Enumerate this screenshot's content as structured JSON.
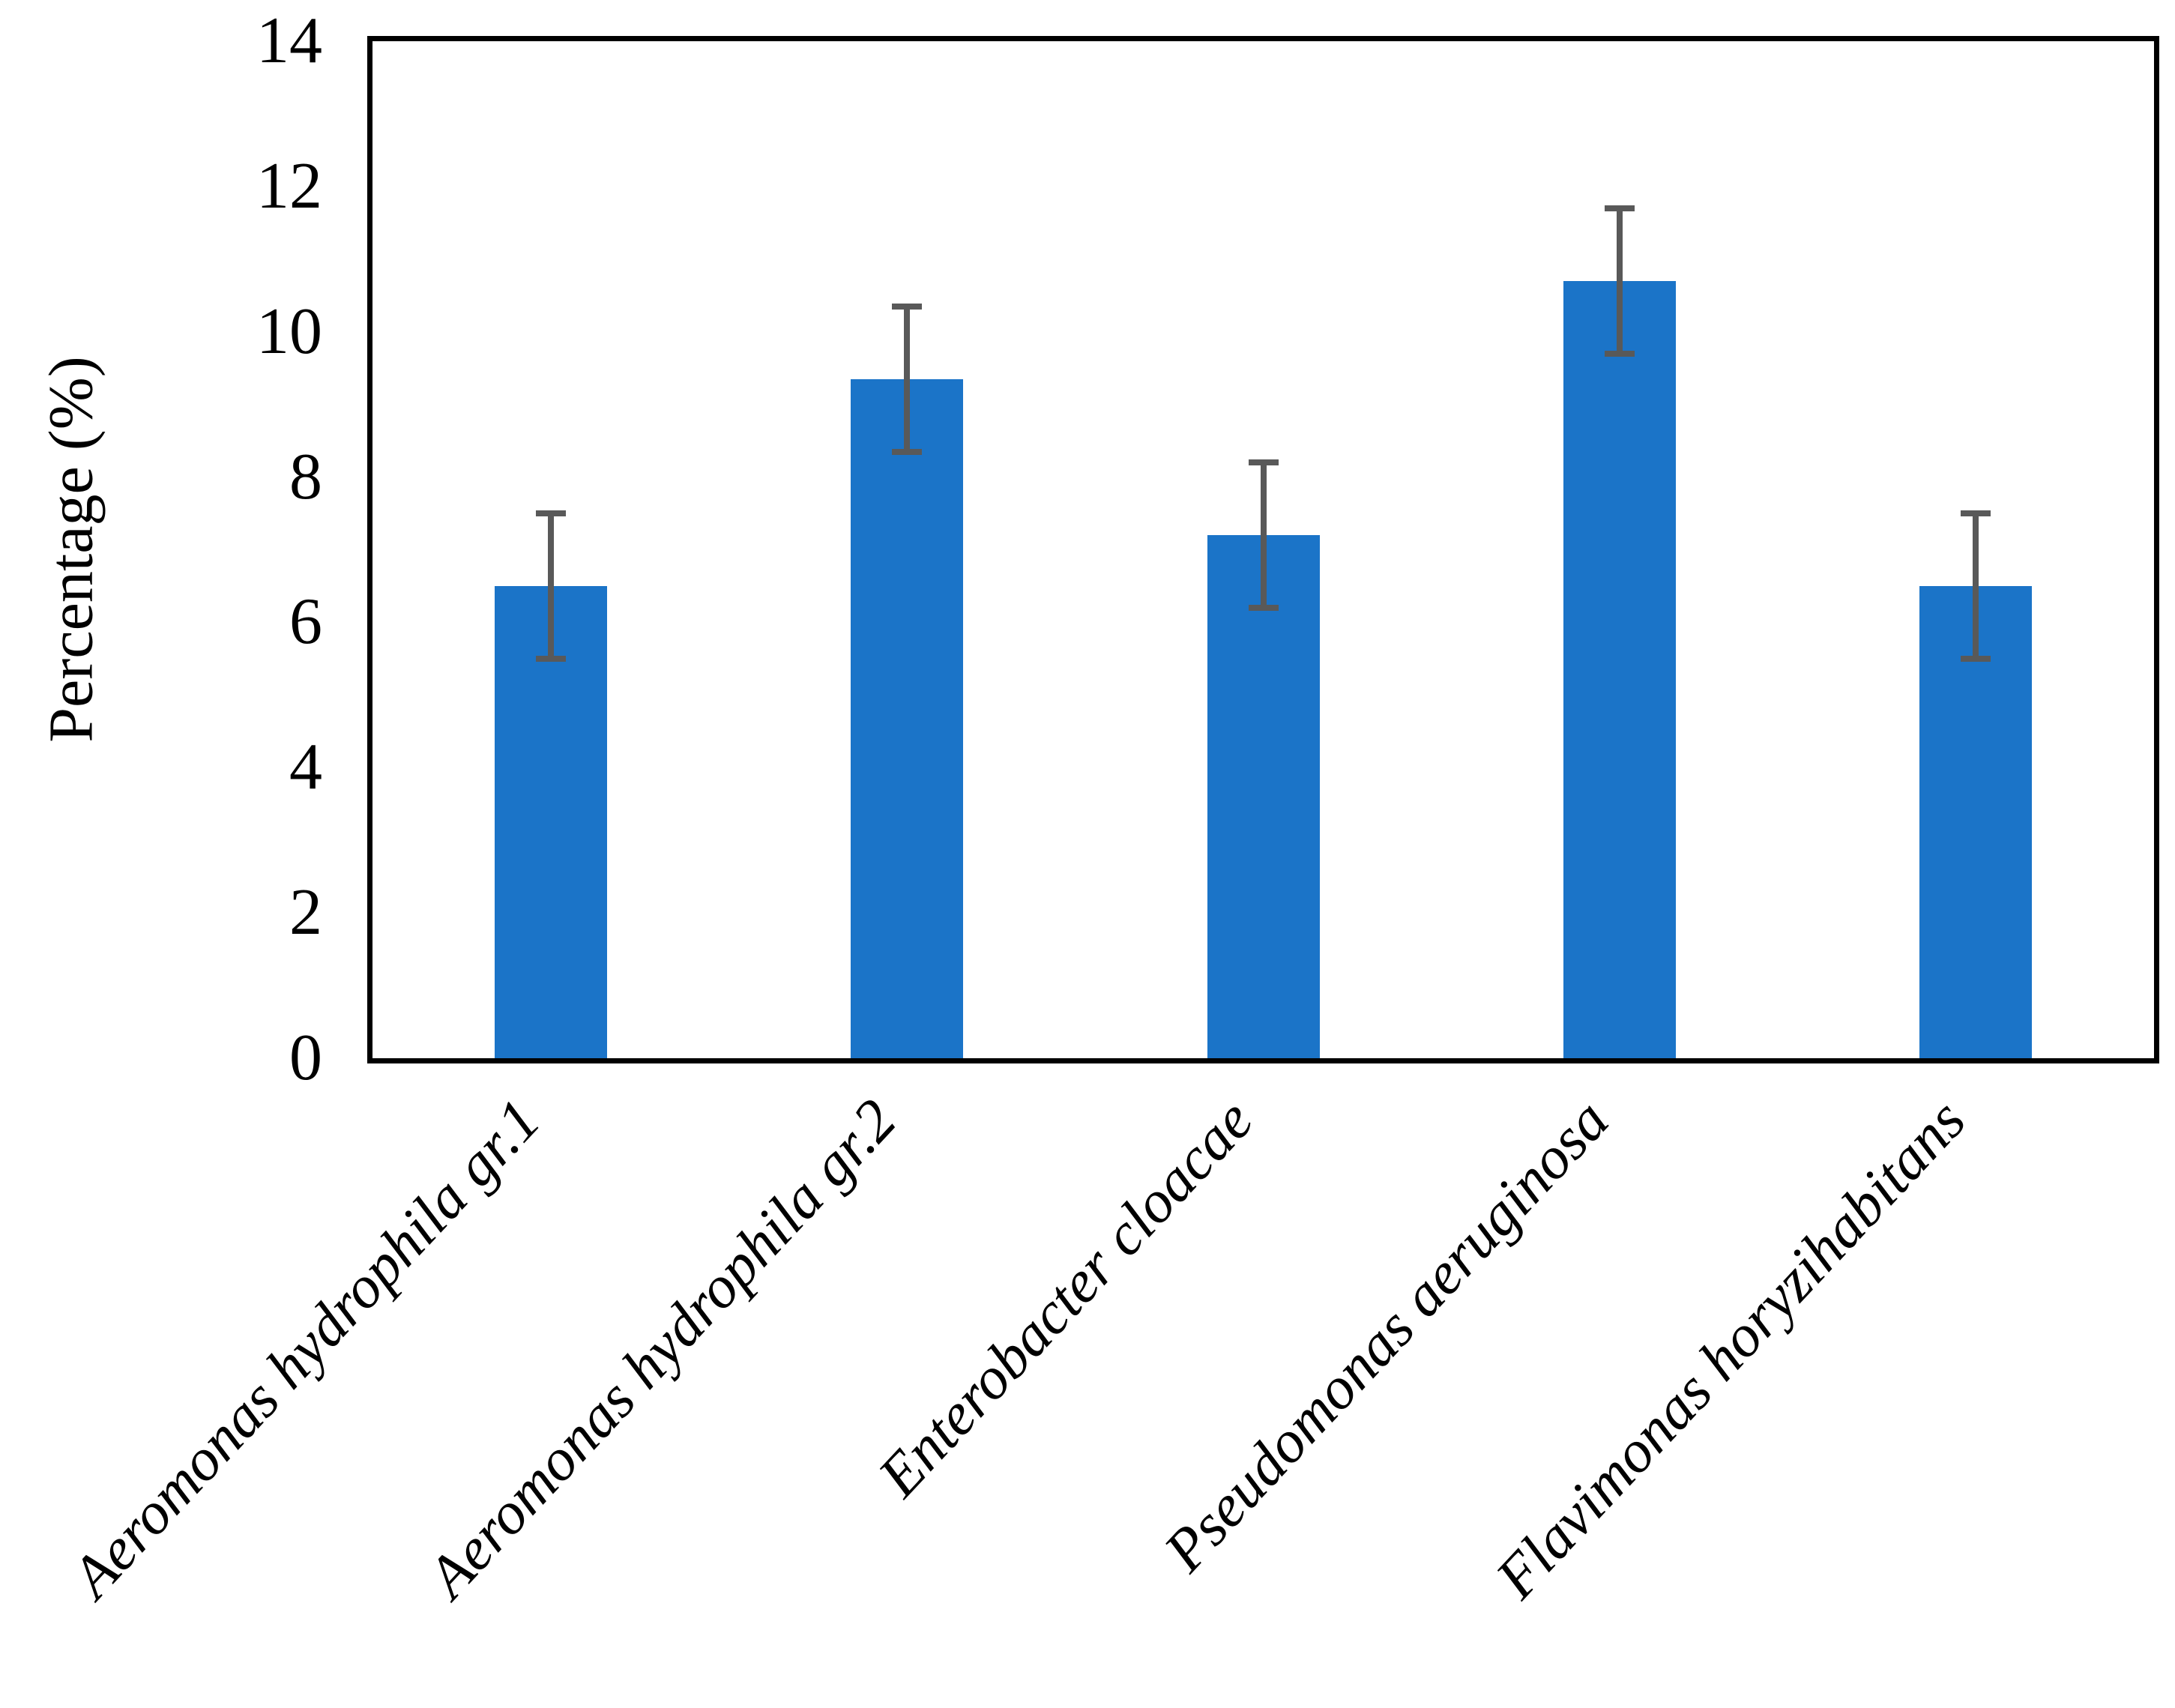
{
  "figure": {
    "background": "#ffffff"
  },
  "chart_data": {
    "type": "bar",
    "title": "",
    "xlabel": "",
    "ylabel": "Percentage (%)",
    "categories": [
      "Aeromonas hydrophila gr.1",
      "Aeromonas hydrophila gr.2",
      "Enterobacter cloacae",
      "Pseudomonas aeruginosa",
      "Flavimonas horyzihabitans"
    ],
    "values": [
      6.5,
      9.35,
      7.2,
      10.7,
      6.5
    ],
    "error_plus": [
      1.0,
      1.0,
      1.0,
      1.0,
      1.0
    ],
    "error_minus": [
      1.0,
      1.0,
      1.0,
      1.0,
      1.0
    ],
    "ylim": [
      0,
      14
    ],
    "yticks": [
      0,
      2,
      4,
      6,
      8,
      10,
      12,
      14
    ],
    "grid": false,
    "legend": null,
    "category_text_style": "italic, rotated 47deg",
    "bar_color": "#1b74c8",
    "error_bar_color": "#595959",
    "axis_color": "#000000"
  }
}
